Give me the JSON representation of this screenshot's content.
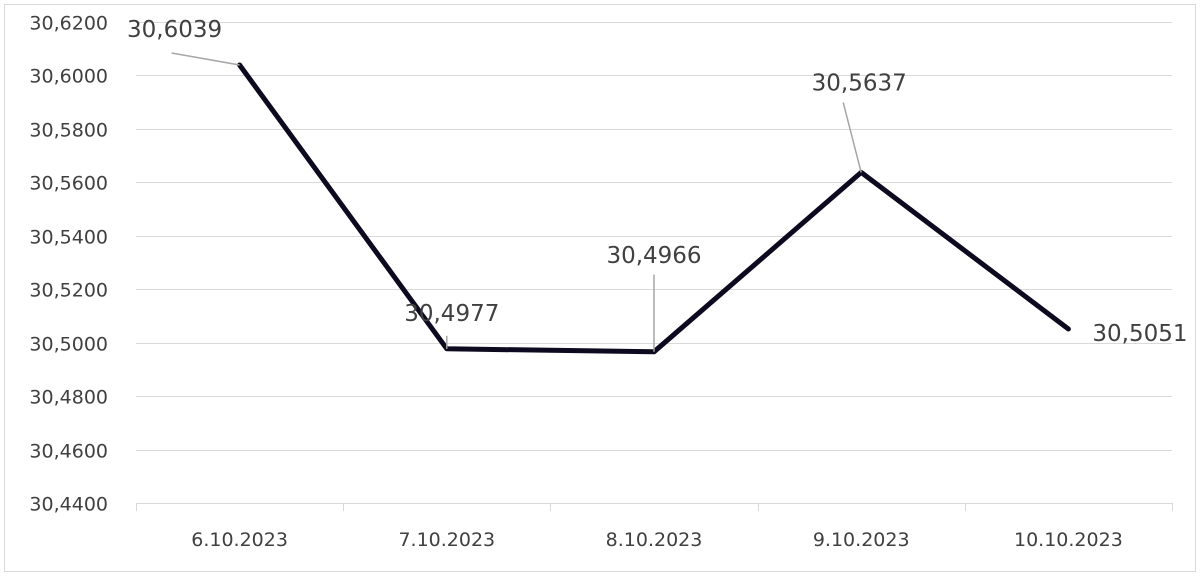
{
  "chart_data": {
    "type": "line",
    "title": "",
    "xlabel": "",
    "ylabel": "",
    "categories": [
      "6.10.2023",
      "7.10.2023",
      "8.10.2023",
      "9.10.2023",
      "10.10.2023"
    ],
    "series": [
      {
        "values": [
          30.6039,
          30.4977,
          30.4966,
          30.5637,
          30.5051
        ]
      }
    ],
    "data_labels": [
      "30,6039",
      "30,4977",
      "30,4966",
      "30,5637",
      "30,5051"
    ],
    "yticks": [
      30.44,
      30.46,
      30.48,
      30.5,
      30.52,
      30.54,
      30.56,
      30.58,
      30.6,
      30.62
    ],
    "ytick_labels": [
      "30,4400",
      "30,4600",
      "30,4800",
      "30,5000",
      "30,5200",
      "30,5400",
      "30,5600",
      "30,5800",
      "30,6000",
      "30,6200"
    ],
    "ylim": [
      30.44,
      30.62
    ],
    "grid": true,
    "legend": "none",
    "colors": {
      "line": "#0d0a1f",
      "grid": "#d9d9d9",
      "text": "#404040"
    }
  }
}
